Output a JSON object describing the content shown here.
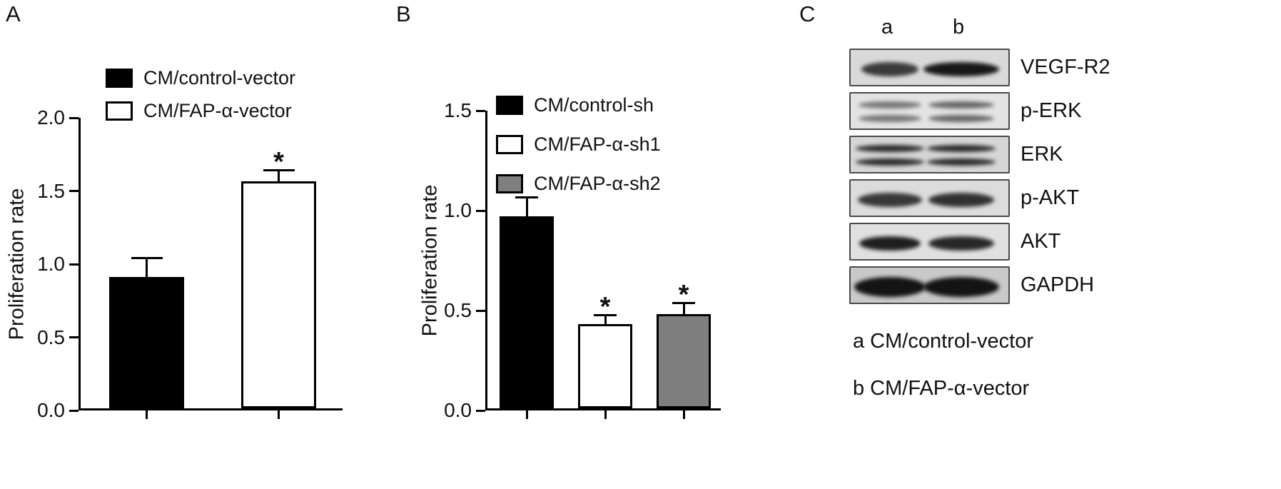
{
  "panels": {
    "A": {
      "label": "A"
    },
    "B": {
      "label": "B"
    },
    "C": {
      "label": "C",
      "lanes": [
        "a",
        "b"
      ],
      "rows": [
        {
          "label": "VEGF-R2",
          "box_shade": "#d9d9d9",
          "band_intensity": [
            0.8,
            0.98
          ],
          "band_widths": [
            80,
            106
          ],
          "doublet": false,
          "thick": false
        },
        {
          "label": "p-ERK",
          "box_shade": "#e3e3e3",
          "band_intensity": [
            0.52,
            0.6
          ],
          "band_widths": [
            88,
            92
          ],
          "doublet": true,
          "thick": false
        },
        {
          "label": "ERK",
          "box_shade": "#d6d6d6",
          "band_intensity": [
            0.88,
            0.88
          ],
          "band_widths": [
            96,
            96
          ],
          "doublet": true,
          "thick": false
        },
        {
          "label": "p-AKT",
          "box_shade": "#dcdcdc",
          "band_intensity": [
            0.82,
            0.85
          ],
          "band_widths": [
            90,
            92
          ],
          "doublet": false,
          "thick": false
        },
        {
          "label": "AKT",
          "box_shade": "#e0e0e0",
          "band_intensity": [
            0.95,
            0.9
          ],
          "band_widths": [
            86,
            92
          ],
          "doublet": false,
          "thick": false
        },
        {
          "label": "GAPDH",
          "box_shade": "#c9c9c9",
          "band_intensity": [
            1,
            1
          ],
          "band_widths": [
            100,
            106
          ],
          "doublet": false,
          "thick": true
        }
      ],
      "footnotes": [
        "a CM/control-vector",
        "b CM/FAP-α-vector"
      ]
    }
  },
  "chart_data": [
    {
      "type": "bar",
      "panel": "A",
      "title": "",
      "xlabel": "",
      "ylabel": "Proliferation rate",
      "ylim": [
        0,
        2.0
      ],
      "yticks": [
        0.0,
        0.5,
        1.0,
        1.5,
        2.0
      ],
      "grid": false,
      "categories": [
        "CM/control-vector",
        "CM/FAP-α-vector"
      ],
      "values": [
        0.9,
        1.55
      ],
      "errors": [
        0.12,
        0.07
      ],
      "bar_fills": [
        "#000000",
        "#ffffff"
      ],
      "significance": [
        "",
        "*"
      ],
      "legend_position": "top-left-inside",
      "legend": [
        {
          "label": "CM/control-vector",
          "fill": "#000000"
        },
        {
          "label": "CM/FAP-α-vector",
          "fill": "#ffffff"
        }
      ]
    },
    {
      "type": "bar",
      "panel": "B",
      "title": "",
      "xlabel": "",
      "ylabel": "Proliferation rate",
      "ylim": [
        0,
        1.5
      ],
      "yticks": [
        0.0,
        0.5,
        1.0,
        1.5
      ],
      "grid": false,
      "categories": [
        "CM/control-sh",
        "CM/FAP-α-sh1",
        "CM/FAP-α-sh2"
      ],
      "values": [
        0.96,
        0.42,
        0.47
      ],
      "errors": [
        0.09,
        0.04,
        0.05
      ],
      "bar_fills": [
        "#000000",
        "#ffffff",
        "#7f7f7f"
      ],
      "significance": [
        "",
        "*",
        "*"
      ],
      "legend_position": "top-left-inside",
      "legend": [
        {
          "label": "CM/control-sh",
          "fill": "#000000"
        },
        {
          "label": "CM/FAP-α-sh1",
          "fill": "#ffffff"
        },
        {
          "label": "CM/FAP-α-sh2",
          "fill": "#7f7f7f"
        }
      ]
    }
  ]
}
